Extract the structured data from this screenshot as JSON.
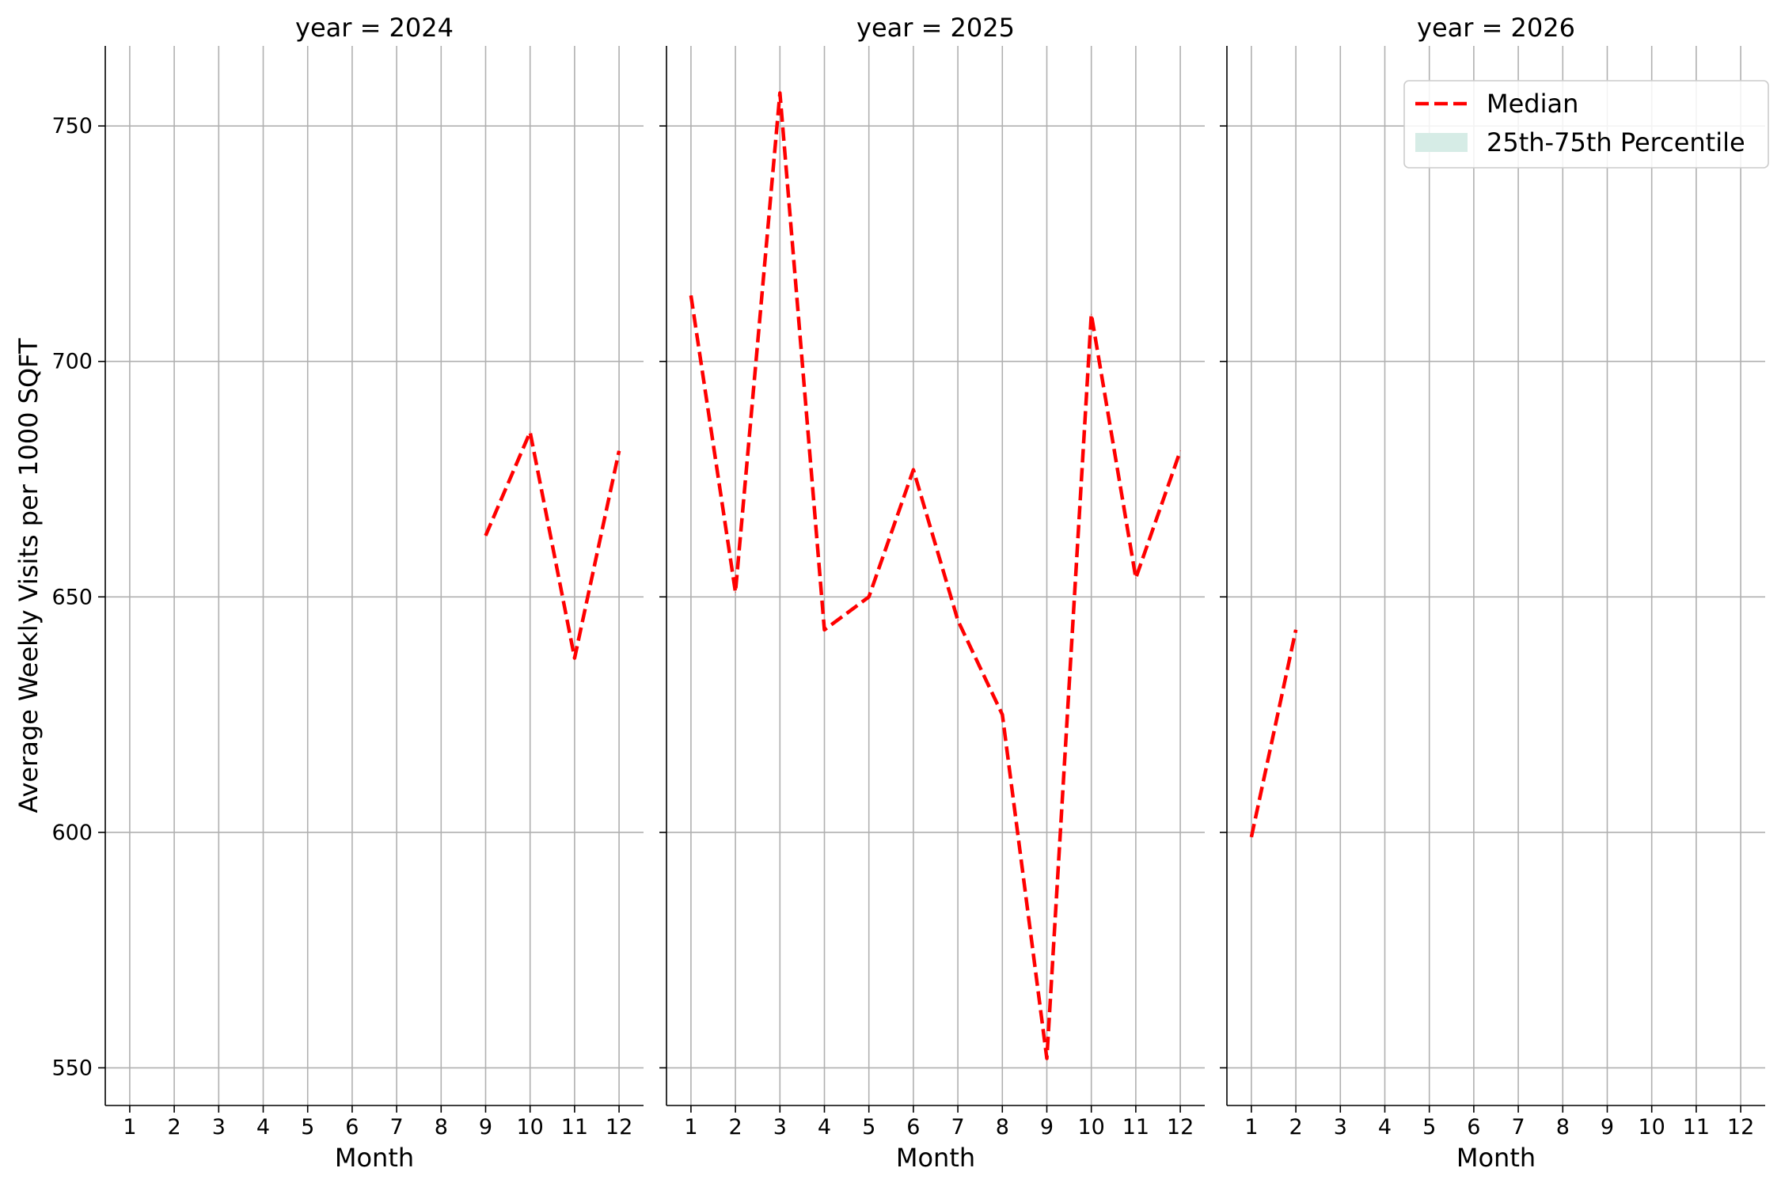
{
  "chart_data": {
    "type": "line",
    "ylabel": "Average Weekly Visits per 1000 SQFT",
    "xlabel": "Month",
    "ylim": [
      542,
      767
    ],
    "yticks": [
      550,
      600,
      650,
      700,
      750
    ],
    "xticks": [
      1,
      2,
      3,
      4,
      5,
      6,
      7,
      8,
      9,
      10,
      11,
      12
    ],
    "xlim": [
      0.45,
      12.55
    ],
    "grid": true,
    "legend": {
      "placement": "top-right",
      "entries": [
        {
          "label": "Median",
          "style": "dashed-line",
          "color": "#ff0000"
        },
        {
          "label": "25th-75th Percentile",
          "style": "patch",
          "color": "#d6ece6"
        }
      ]
    },
    "panels": [
      {
        "title": "year = 2024",
        "series": [
          {
            "name": "Median",
            "x": [
              9,
              10,
              11,
              12
            ],
            "y": [
              663,
              685,
              637,
              681
            ]
          }
        ]
      },
      {
        "title": "year = 2025",
        "series": [
          {
            "name": "Median",
            "x": [
              1,
              2,
              3,
              4,
              5,
              6,
              7,
              8,
              9,
              10,
              11,
              12
            ],
            "y": [
              714,
              651,
              757,
              643,
              650,
              677,
              645,
              625,
              552,
              710,
              654,
              681
            ]
          }
        ]
      },
      {
        "title": "year = 2026",
        "series": [
          {
            "name": "Median",
            "x": [
              1,
              2
            ],
            "y": [
              599,
              643
            ]
          }
        ]
      }
    ]
  }
}
